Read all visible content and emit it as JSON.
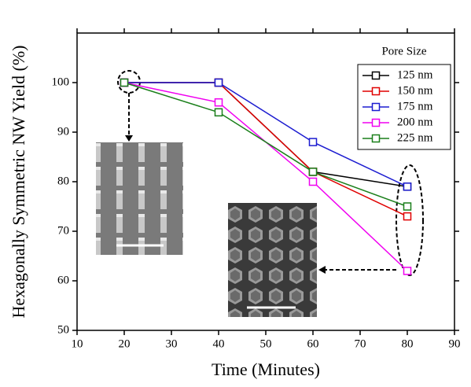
{
  "chart_data": {
    "type": "line",
    "x_label": "Time (Minutes)",
    "y_label": "Hexagonally Symmetric NW Yield (%)",
    "legend_title": "Pore Size",
    "legend_position": "upper right",
    "x": [
      20,
      40,
      60,
      80
    ],
    "series": [
      {
        "name": "125 nm",
        "color": "#000000",
        "values": [
          100,
          100,
          82,
          79
        ]
      },
      {
        "name": "150 nm",
        "color": "#e00000",
        "values": [
          100,
          100,
          82,
          73
        ]
      },
      {
        "name": "175 nm",
        "color": "#1c1cd0",
        "values": [
          100,
          100,
          88,
          79
        ]
      },
      {
        "name": "200 nm",
        "color": "#f000f0",
        "values": [
          100,
          96,
          80,
          62
        ]
      },
      {
        "name": "225 nm",
        "color": "#1a7f1a",
        "values": [
          100,
          94,
          82,
          75
        ]
      }
    ],
    "xlim": [
      10,
      90
    ],
    "xticks": [
      10,
      20,
      30,
      40,
      50,
      60,
      70,
      80,
      90
    ],
    "ylim": [
      50,
      110
    ],
    "yticks": [
      50,
      60,
      70,
      80,
      90,
      100
    ]
  }
}
